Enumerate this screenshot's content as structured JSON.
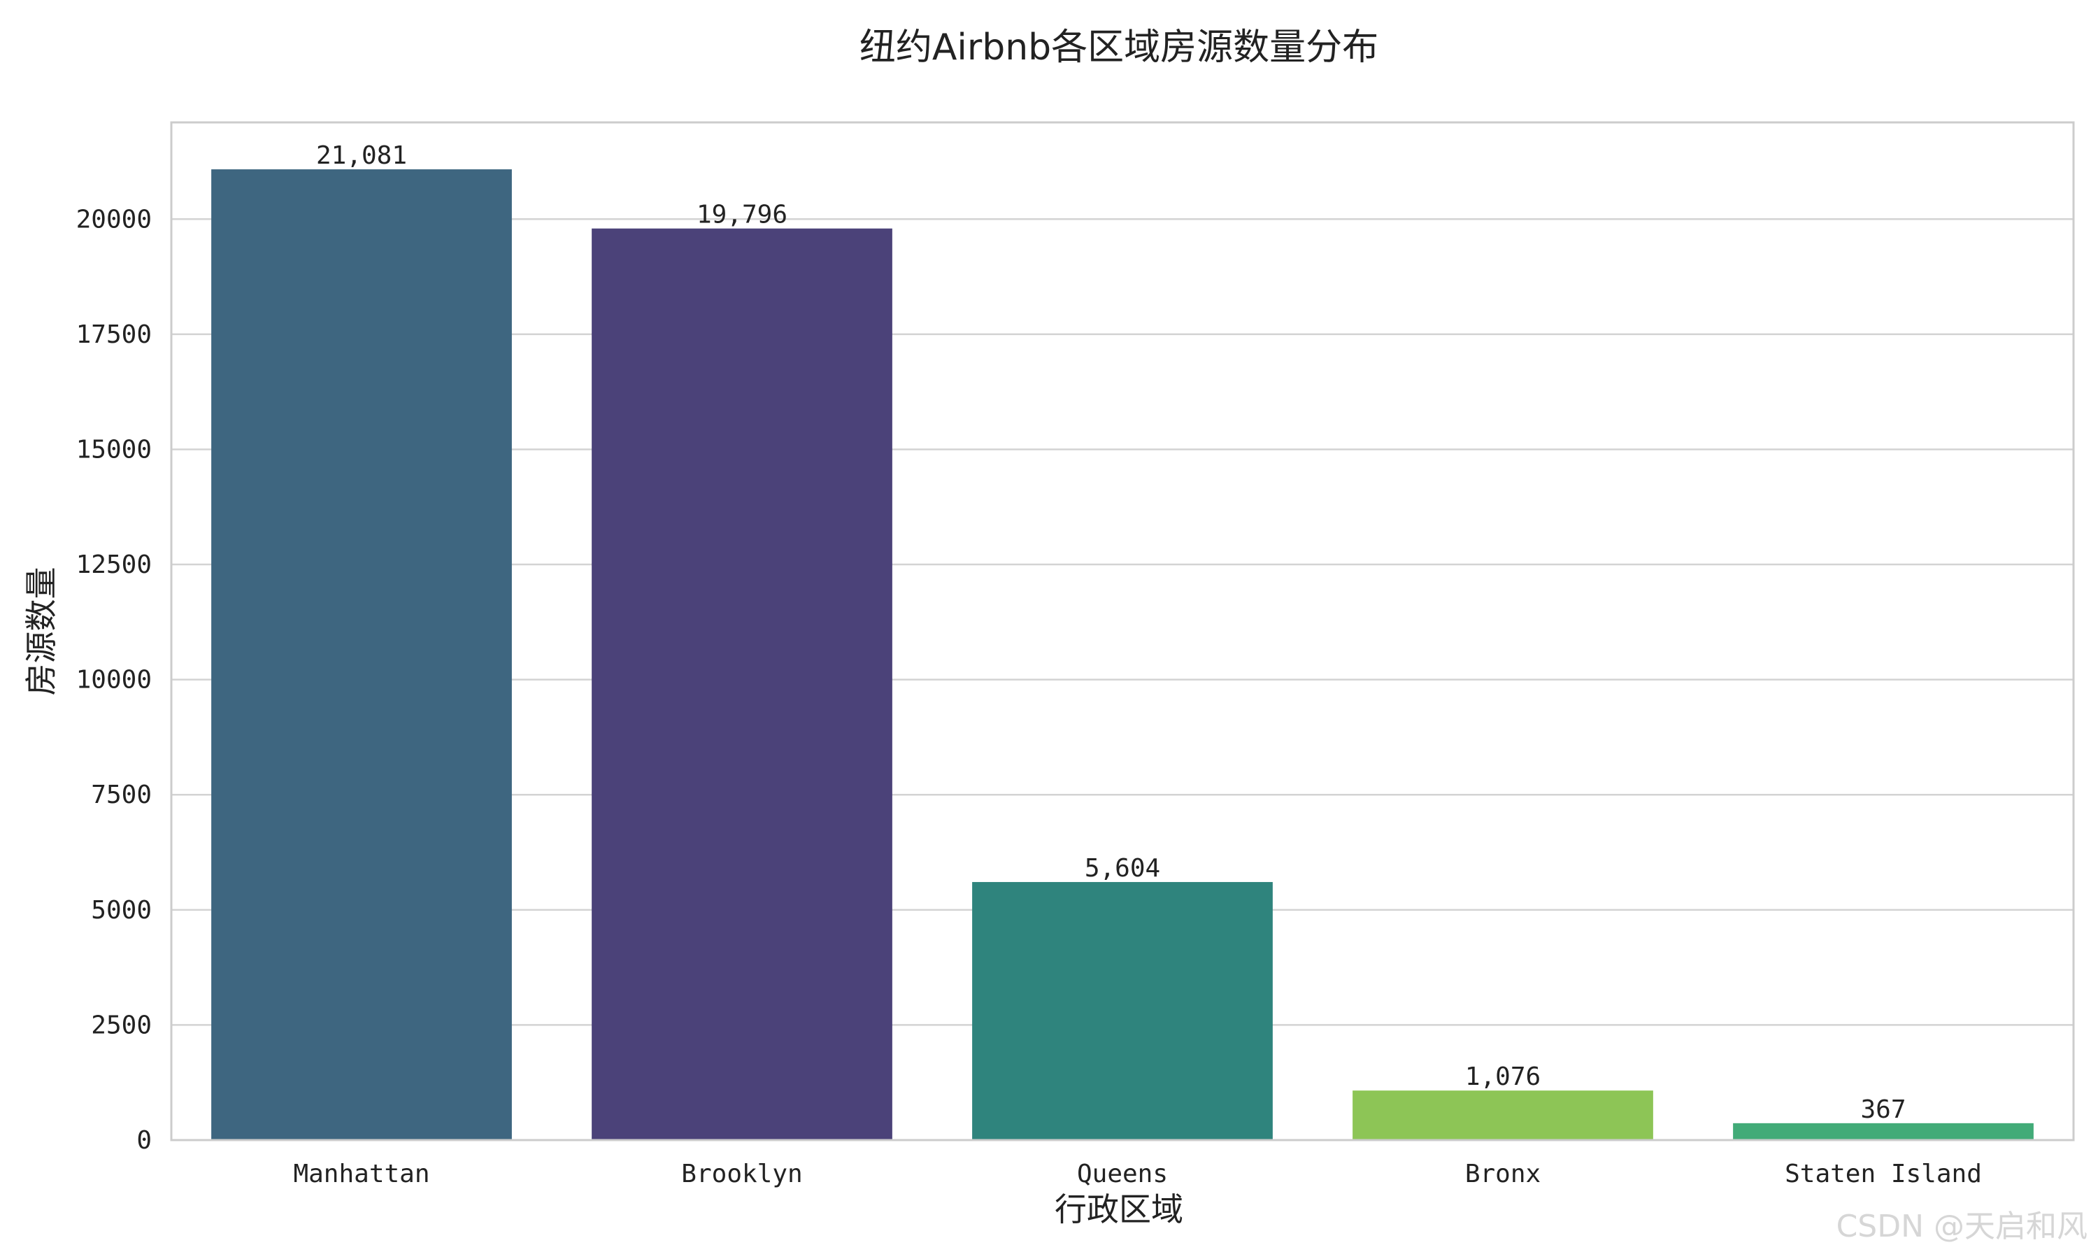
{
  "chart_data": {
    "type": "bar",
    "title": "纽约Airbnb各区域房源数量分布",
    "xlabel": "行政区域",
    "ylabel": "房源数量",
    "categories": [
      "Manhattan",
      "Brooklyn",
      "Queens",
      "Bronx",
      "Staten Island"
    ],
    "values": [
      21081,
      19796,
      5604,
      1076,
      367
    ],
    "value_labels": [
      "21,081",
      "19,796",
      "5,604",
      "1,076",
      "367"
    ],
    "colors": [
      "#3e6680",
      "#4b4279",
      "#2f847d",
      "#8dc556",
      "#42ab78"
    ],
    "ylim": [
      0,
      22100
    ],
    "yticks": [
      0,
      2500,
      5000,
      7500,
      10000,
      12500,
      15000,
      17500,
      20000
    ],
    "ytick_labels": [
      "0",
      "2500",
      "5000",
      "7500",
      "10000",
      "12500",
      "15000",
      "17500",
      "20000"
    ],
    "grid": true,
    "legend": "none"
  },
  "watermark": "CSDN @天启和风"
}
